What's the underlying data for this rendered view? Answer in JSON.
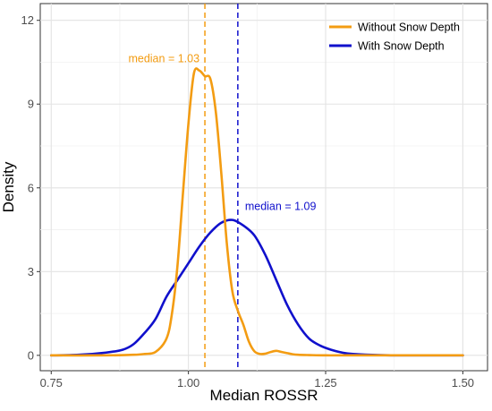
{
  "chart_data": {
    "type": "line",
    "title": "",
    "xlabel": "Median ROSSR",
    "ylabel": "Density",
    "xlim": [
      0.73,
      1.545
    ],
    "ylim": [
      -0.55,
      12.6
    ],
    "x_ticks": [
      0.75,
      1.0,
      1.25,
      1.5
    ],
    "x_tick_labels": [
      "0.75",
      "1.00",
      "1.25",
      "1.50"
    ],
    "y_ticks": [
      0,
      3,
      6,
      9,
      12
    ],
    "y_tick_labels": [
      "0",
      "3",
      "6",
      "9",
      "12"
    ],
    "grid": true,
    "legend_position": "top-right",
    "series": [
      {
        "name": "Without Snow Depth",
        "color": "#F39C12",
        "x": [
          0.75,
          0.85,
          0.9,
          0.92,
          0.94,
          0.96,
          0.97,
          0.98,
          0.99,
          1.0,
          1.01,
          1.02,
          1.03,
          1.04,
          1.05,
          1.06,
          1.07,
          1.08,
          1.09,
          1.1,
          1.11,
          1.12,
          1.13,
          1.14,
          1.15,
          1.16,
          1.17,
          1.18,
          1.19,
          1.2,
          1.22,
          1.25,
          1.3,
          1.5
        ],
        "y": [
          0,
          0,
          0.02,
          0.05,
          0.12,
          0.6,
          1.5,
          3.2,
          5.8,
          8.3,
          10.1,
          10.2,
          10.0,
          9.9,
          8.7,
          6.5,
          4.0,
          2.3,
          1.6,
          1.1,
          0.5,
          0.15,
          0.05,
          0.06,
          0.12,
          0.16,
          0.12,
          0.08,
          0.04,
          0.02,
          0.01,
          0.0,
          0.0,
          0.0
        ]
      },
      {
        "name": "With Snow Depth",
        "color": "#1010CC",
        "x": [
          0.75,
          0.8,
          0.85,
          0.88,
          0.9,
          0.92,
          0.94,
          0.96,
          0.98,
          1.0,
          1.02,
          1.04,
          1.06,
          1.08,
          1.1,
          1.12,
          1.14,
          1.16,
          1.18,
          1.2,
          1.22,
          1.24,
          1.26,
          1.28,
          1.3,
          1.35,
          1.4,
          1.5
        ],
        "y": [
          0,
          0.02,
          0.1,
          0.2,
          0.4,
          0.8,
          1.3,
          2.1,
          2.7,
          3.3,
          3.9,
          4.4,
          4.75,
          4.85,
          4.65,
          4.3,
          3.6,
          2.7,
          1.8,
          1.1,
          0.6,
          0.35,
          0.2,
          0.1,
          0.05,
          0.01,
          0.0,
          0.0
        ]
      }
    ],
    "reference_lines": [
      {
        "x": 1.03,
        "color": "#F39C12",
        "style": "dashed"
      },
      {
        "x": 1.09,
        "color": "#1010CC",
        "style": "dashed"
      }
    ],
    "annotations": [
      {
        "text": "median = 1.03",
        "x": 1.03,
        "y": 10.5,
        "color": "#F39C12",
        "anchor": "end"
      },
      {
        "text": "median = 1.09",
        "x": 1.09,
        "y": 5.2,
        "color": "#1010CC",
        "anchor": "start"
      }
    ]
  }
}
